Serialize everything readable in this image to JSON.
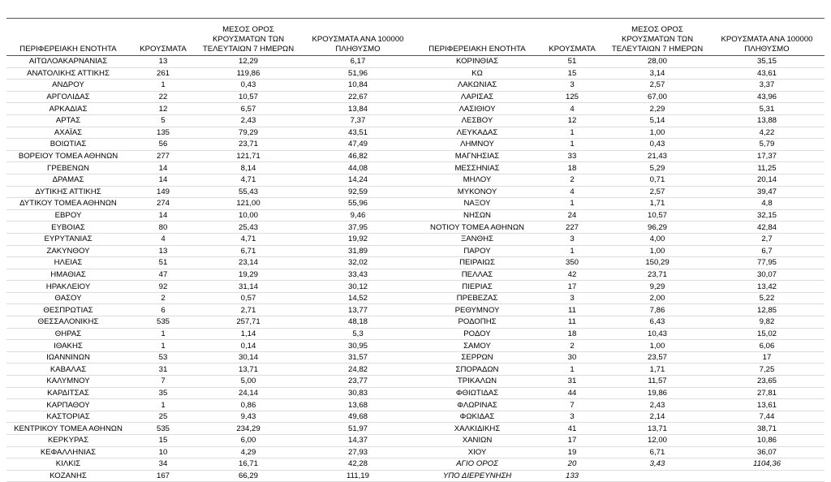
{
  "columns": [
    "ΠΕΡΙΦΕΡΕΙΑΚΗ ΕΝΟΤΗΤΑ",
    "ΚΡΟΥΣΜΑΤΑ",
    "ΜΕΣΟΣ ΟΡΟΣ ΚΡΟΥΣΜΑΤΩΝ ΤΩΝ ΤΕΛΕΥΤΑΙΩΝ 7 ΗΜΕΡΩΝ",
    "ΚΡΟΥΣΜΑΤΑ ΑΝΑ 100000 ΠΛΗΘΥΣΜΟ"
  ],
  "left_table": {
    "rows": [
      [
        "ΑΙΤΩΛΟΑΚΑΡΝΑΝΙΑΣ",
        "13",
        "12,29",
        "6,17"
      ],
      [
        "ΑΝΑΤΟΛΙΚΗΣ ΑΤΤΙΚΗΣ",
        "261",
        "119,86",
        "51,96"
      ],
      [
        "ΑΝΔΡΟΥ",
        "1",
        "0,43",
        "10,84"
      ],
      [
        "ΑΡΓΟΛΙΔΑΣ",
        "22",
        "10,57",
        "22,67"
      ],
      [
        "ΑΡΚΑΔΙΑΣ",
        "12",
        "6,57",
        "13,84"
      ],
      [
        "ΑΡΤΑΣ",
        "5",
        "2,43",
        "7,37"
      ],
      [
        "ΑΧΑΪΑΣ",
        "135",
        "79,29",
        "43,51"
      ],
      [
        "ΒΟΙΩΤΙΑΣ",
        "56",
        "23,71",
        "47,49"
      ],
      [
        "ΒΟΡΕΙΟΥ ΤΟΜΕΑ ΑΘΗΝΩΝ",
        "277",
        "121,71",
        "46,82"
      ],
      [
        "ΓΡΕΒΕΝΩΝ",
        "14",
        "8,14",
        "44,08"
      ],
      [
        "ΔΡΑΜΑΣ",
        "14",
        "4,71",
        "14,24"
      ],
      [
        "ΔΥΤΙΚΗΣ ΑΤΤΙΚΗΣ",
        "149",
        "55,43",
        "92,59"
      ],
      [
        "ΔΥΤΙΚΟΥ ΤΟΜΕΑ ΑΘΗΝΩΝ",
        "274",
        "121,00",
        "55,96"
      ],
      [
        "ΕΒΡΟΥ",
        "14",
        "10,00",
        "9,46"
      ],
      [
        "ΕΥΒΟΙΑΣ",
        "80",
        "25,43",
        "37,95"
      ],
      [
        "ΕΥΡΥΤΑΝΙΑΣ",
        "4",
        "4,71",
        "19,92"
      ],
      [
        "ΖΑΚΥΝΘΟΥ",
        "13",
        "6,71",
        "31,89"
      ],
      [
        "ΗΛΕΙΑΣ",
        "51",
        "23,14",
        "32,02"
      ],
      [
        "ΗΜΑΘΙΑΣ",
        "47",
        "19,29",
        "33,43"
      ],
      [
        "ΗΡΑΚΛΕΙΟΥ",
        "92",
        "31,14",
        "30,12"
      ],
      [
        "ΘΑΣΟΥ",
        "2",
        "0,57",
        "14,52"
      ],
      [
        "ΘΕΣΠΡΩΤΙΑΣ",
        "6",
        "2,71",
        "13,77"
      ],
      [
        "ΘΕΣΣΑΛΟΝΙΚΗΣ",
        "535",
        "257,71",
        "48,18"
      ],
      [
        "ΘΗΡΑΣ",
        "1",
        "1,14",
        "5,3"
      ],
      [
        "ΙΘΑΚΗΣ",
        "1",
        "0,14",
        "30,95"
      ],
      [
        "ΙΩΑΝΝΙΝΩΝ",
        "53",
        "30,14",
        "31,57"
      ],
      [
        "ΚΑΒΑΛΑΣ",
        "31",
        "13,71",
        "24,82"
      ],
      [
        "ΚΑΛΥΜΝΟΥ",
        "7",
        "5,00",
        "23,77"
      ],
      [
        "ΚΑΡΔΙΤΣΑΣ",
        "35",
        "24,14",
        "30,83"
      ],
      [
        "ΚΑΡΠΑΘΟΥ",
        "1",
        "0,86",
        "13,68"
      ],
      [
        "ΚΑΣΤΟΡΙΑΣ",
        "25",
        "9,43",
        "49,68"
      ],
      [
        "ΚΕΝΤΡΙΚΟΥ ΤΟΜΕΑ ΑΘΗΝΩΝ",
        "535",
        "234,29",
        "51,97"
      ],
      [
        "ΚΕΡΚΥΡΑΣ",
        "15",
        "6,00",
        "14,37"
      ],
      [
        "ΚΕΦΑΛΛΗΝΙΑΣ",
        "10",
        "4,29",
        "27,93"
      ],
      [
        "ΚΙΛΚΙΣ",
        "34",
        "16,71",
        "42,28"
      ],
      [
        "ΚΟΖΑΝΗΣ",
        "167",
        "66,29",
        "111,19"
      ]
    ]
  },
  "right_table": {
    "rows": [
      [
        "ΚΟΡΙΝΘΙΑΣ",
        "51",
        "28,00",
        "35,15"
      ],
      [
        "ΚΩ",
        "15",
        "3,14",
        "43,61"
      ],
      [
        "ΛΑΚΩΝΙΑΣ",
        "3",
        "2,57",
        "3,37"
      ],
      [
        "ΛΑΡΙΣΑΣ",
        "125",
        "67,00",
        "43,96"
      ],
      [
        "ΛΑΣΙΘΙΟΥ",
        "4",
        "2,29",
        "5,31"
      ],
      [
        "ΛΕΣΒΟΥ",
        "12",
        "5,14",
        "13,88"
      ],
      [
        "ΛΕΥΚΑΔΑΣ",
        "1",
        "1,00",
        "4,22"
      ],
      [
        "ΛΗΜΝΟΥ",
        "1",
        "0,43",
        "5,79"
      ],
      [
        "ΜΑΓΝΗΣΙΑΣ",
        "33",
        "21,43",
        "17,37"
      ],
      [
        "ΜΕΣΣΗΝΙΑΣ",
        "18",
        "5,29",
        "11,25"
      ],
      [
        "ΜΗΛΟΥ",
        "2",
        "0,71",
        "20,14"
      ],
      [
        "ΜΥΚΟΝΟΥ",
        "4",
        "2,57",
        "39,47"
      ],
      [
        "ΝΑΞΟΥ",
        "1",
        "1,71",
        "4,8"
      ],
      [
        "ΝΗΣΩΝ",
        "24",
        "10,57",
        "32,15"
      ],
      [
        "ΝΟΤΙΟΥ ΤΟΜΕΑ ΑΘΗΝΩΝ",
        "227",
        "96,29",
        "42,84"
      ],
      [
        "ΞΑΝΘΗΣ",
        "3",
        "4,00",
        "2,7"
      ],
      [
        "ΠΑΡΟΥ",
        "1",
        "1,00",
        "6,7"
      ],
      [
        "ΠΕΙΡΑΙΩΣ",
        "350",
        "150,29",
        "77,95"
      ],
      [
        "ΠΕΛΛΑΣ",
        "42",
        "23,71",
        "30,07"
      ],
      [
        "ΠΙΕΡΙΑΣ",
        "17",
        "9,29",
        "13,42"
      ],
      [
        "ΠΡΕΒΕΖΑΣ",
        "3",
        "2,00",
        "5,22"
      ],
      [
        "ΡΕΘΥΜΝΟΥ",
        "11",
        "7,86",
        "12,85"
      ],
      [
        "ΡΟΔΟΠΗΣ",
        "11",
        "6,43",
        "9,82"
      ],
      [
        "ΡΟΔΟΥ",
        "18",
        "10,43",
        "15,02"
      ],
      [
        "ΣΑΜΟΥ",
        "2",
        "1,00",
        "6,06"
      ],
      [
        "ΣΕΡΡΩΝ",
        "30",
        "23,57",
        "17"
      ],
      [
        "ΣΠΟΡΑΔΩΝ",
        "1",
        "1,71",
        "7,25"
      ],
      [
        "ΤΡΙΚΑΛΩΝ",
        "31",
        "11,57",
        "23,65"
      ],
      [
        "ΦΘΙΩΤΙΔΑΣ",
        "44",
        "19,86",
        "27,81"
      ],
      [
        "ΦΛΩΡΙΝΑΣ",
        "7",
        "2,43",
        "13,61"
      ],
      [
        "ΦΩΚΙΔΑΣ",
        "3",
        "2,14",
        "7,44"
      ],
      [
        "ΧΑΛΚΙΔΙΚΗΣ",
        "41",
        "13,71",
        "38,71"
      ],
      [
        "ΧΑΝΙΩΝ",
        "17",
        "12,00",
        "10,86"
      ],
      [
        "ΧΙΟΥ",
        "19",
        "6,71",
        "36,07"
      ],
      [
        "ΑΓΙΟ ΟΡΟΣ",
        "20",
        "3,43",
        "1104,36"
      ],
      [
        "ΥΠΟ ΔΙΕΡΕΥΝΗΣΗ",
        "133"
      ]
    ]
  }
}
